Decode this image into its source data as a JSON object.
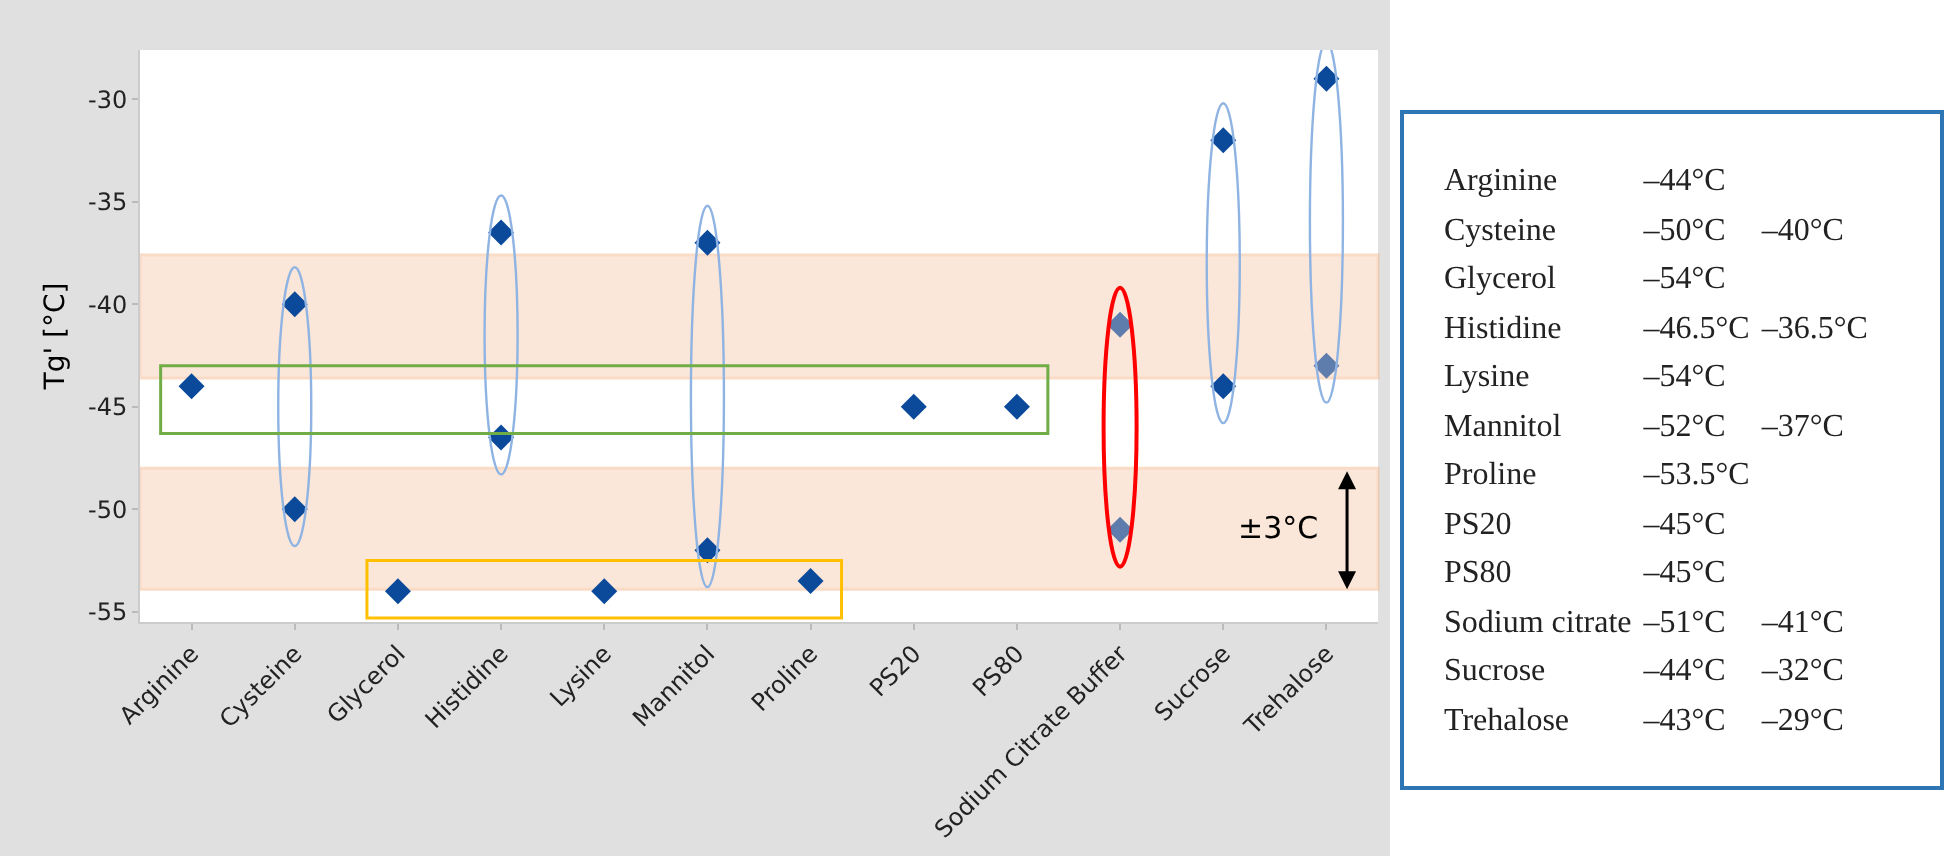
{
  "chart_data": [
    {
      "type": "scatter",
      "ylabel": "Tg' [°C]",
      "categories": [
        "Arginine",
        "Cysteine",
        "Glycerol",
        "Histidine",
        "Lysine",
        "Mannitol",
        "Proline",
        "PS20",
        "PS80",
        "Sodium Citrate Buffer",
        "Sucrose",
        "Trehalose"
      ],
      "series": [
        {
          "colors": [
            "#0b4a9a",
            "#0b4a9a",
            "#0b4a9a",
            "#0b4a9a",
            "#0b4a9a",
            "#0b4a9a",
            "#0b4a9a",
            "#0b4a9a",
            "#0b4a9a",
            "#5e7cac",
            "#0b4a9a",
            "#5e7cac"
          ],
          "values": [
            -44,
            -50,
            -54,
            -46.5,
            -54,
            -52,
            -53.5,
            -45,
            -45,
            -51,
            -44,
            -43
          ]
        },
        {
          "colors": [
            "#0b4a9a",
            "#0b4a9a",
            "#0b4a9a",
            "#0b4a9a",
            "#0b4a9a",
            "#0b4a9a",
            "#0b4a9a",
            "#0b4a9a",
            "#0b4a9a",
            "#5e7cac",
            "#0b4a9a",
            "#0b4a9a"
          ],
          "values": [
            null,
            -40,
            null,
            -36.5,
            null,
            -37,
            null,
            null,
            null,
            -41,
            -32,
            -29
          ]
        }
      ],
      "ylim": [
        -55.5,
        -27.6
      ],
      "yticks": [
        -55,
        -50,
        -45,
        -40,
        -35,
        -30
      ],
      "grid": false,
      "marker": "diamond",
      "bands": [
        {
          "axis": "y",
          "from": -43.6,
          "to": -37.6,
          "color": "#f8cbad"
        },
        {
          "axis": "y",
          "from": -53.9,
          "to": -48,
          "color": "#f8cbad"
        }
      ],
      "annotations": [
        "±3°C"
      ]
    },
    {
      "type": "other",
      "y_categories": [
        "Arginine",
        "Cysteine",
        "Glycerol",
        "Histidine",
        "Lysine",
        "Mannitol",
        "Proline",
        "PS20",
        "PS80",
        "Sodium citrate",
        "Sucrose",
        "Trehalose"
      ],
      "cell_labels": [
        [
          "–44°C",
          null
        ],
        [
          "–50°C",
          "–40°C"
        ],
        [
          "–54°C",
          null
        ],
        [
          "–46.5°C",
          "–36.5°C"
        ],
        [
          "–54°C",
          null
        ],
        [
          "–52°C",
          "–37°C"
        ],
        [
          "–53.5°C",
          null
        ],
        [
          "–45°C",
          null
        ],
        [
          "–45°C",
          null
        ],
        [
          "–51°C",
          "–41°C"
        ],
        [
          "–44°C",
          "–32°C"
        ],
        [
          "–43°C",
          "–29°C"
        ]
      ]
    }
  ]
}
